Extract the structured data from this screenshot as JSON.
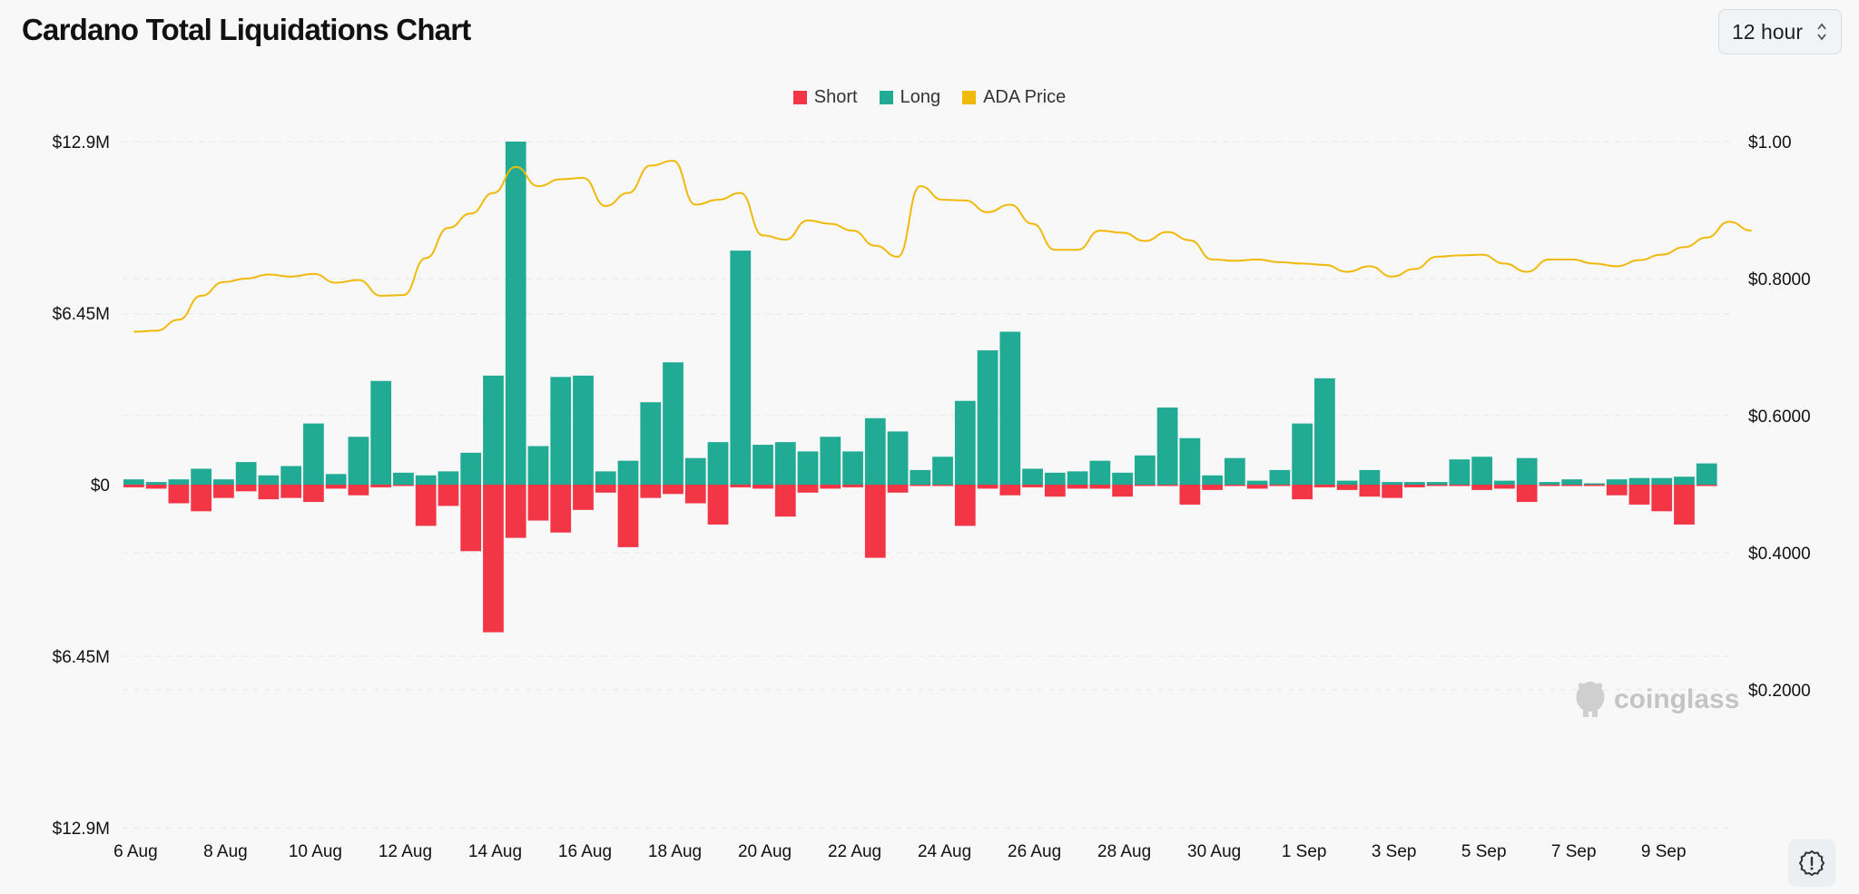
{
  "page": {
    "title": "Cardano Total Liquidations Chart",
    "interval": "12 hour",
    "watermark": "coinglass",
    "icons": {
      "interval": "chevron-up-down-icon",
      "settings": "gear-alert-icon",
      "watermark": "coinglass-logo-icon"
    }
  },
  "chart_data": {
    "type": "bar",
    "title": "Cardano Total Liquidations Chart",
    "legend_position": "top-center",
    "grid": true,
    "colors": {
      "short": "#f23645",
      "long": "#22ab94",
      "price": "#f0b90b"
    },
    "x_tick_labels": [
      "6 Aug",
      "8 Aug",
      "10 Aug",
      "12 Aug",
      "14 Aug",
      "16 Aug",
      "18 Aug",
      "20 Aug",
      "22 Aug",
      "24 Aug",
      "26 Aug",
      "28 Aug",
      "30 Aug",
      "1 Sep",
      "3 Sep",
      "5 Sep",
      "7 Sep",
      "9 Sep"
    ],
    "y_left_tick_labels": [
      "$12.9M",
      "$6.45M",
      "$0",
      "$6.45M",
      "$12.9M"
    ],
    "y_left_ticks": [
      12.9,
      6.45,
      0,
      -6.45,
      -12.9
    ],
    "y_left_range": [
      -12.9,
      12.9
    ],
    "y_right_tick_labels": [
      "$1.00",
      "$0.8000",
      "$0.6000",
      "$0.4000",
      "$0.2000"
    ],
    "y_right_ticks": [
      1.0,
      0.8,
      0.6,
      0.4,
      0.2
    ],
    "y_right_range": [
      0.0,
      1.0
    ],
    "interval_hours": 12,
    "start_label": "6 Aug",
    "series": [
      {
        "name": "Long",
        "unit": "$M",
        "values": [
          0.2,
          0.1,
          0.2,
          0.6,
          0.2,
          0.85,
          0.35,
          0.7,
          2.3,
          0.4,
          1.8,
          3.9,
          0.45,
          0.35,
          0.5,
          1.2,
          4.1,
          12.9,
          1.45,
          4.05,
          4.1,
          0.5,
          0.9,
          3.1,
          4.6,
          1.0,
          1.6,
          8.8,
          1.5,
          1.6,
          1.25,
          1.8,
          1.25,
          2.5,
          2.0,
          0.55,
          1.05,
          3.15,
          5.05,
          5.75,
          0.6,
          0.45,
          0.5,
          0.9,
          0.45,
          1.1,
          2.9,
          1.75,
          0.35,
          1.0,
          0.15,
          0.55,
          2.3,
          4.0,
          0.15,
          0.55,
          0.1,
          0.1,
          0.1,
          0.95,
          1.05,
          0.15,
          1.0,
          0.1,
          0.2,
          0.05,
          0.2,
          0.25,
          0.25,
          0.3,
          0.8
        ]
      },
      {
        "name": "Short",
        "unit": "$M",
        "values": [
          0.1,
          0.15,
          0.7,
          1.0,
          0.5,
          0.25,
          0.55,
          0.5,
          0.65,
          0.15,
          0.4,
          0.1,
          0.05,
          1.55,
          0.8,
          2.5,
          5.55,
          2.0,
          1.35,
          1.8,
          0.95,
          0.3,
          2.35,
          0.5,
          0.35,
          0.7,
          1.5,
          0.1,
          0.15,
          1.2,
          0.3,
          0.15,
          0.1,
          2.75,
          0.3,
          0.05,
          0.05,
          1.55,
          0.15,
          0.4,
          0.1,
          0.45,
          0.15,
          0.15,
          0.45,
          0.05,
          0.05,
          0.75,
          0.2,
          0.05,
          0.15,
          0.05,
          0.55,
          0.1,
          0.2,
          0.45,
          0.5,
          0.1,
          0.05,
          0.05,
          0.2,
          0.15,
          0.65,
          0.05,
          0.05,
          0.05,
          0.4,
          0.75,
          1.0,
          1.5,
          0.05
        ]
      },
      {
        "name": "ADA Price",
        "unit": "$",
        "axis": "right",
        "points": [
          [
            0,
            0.7225
          ],
          [
            1,
            0.724
          ],
          [
            2,
            0.74
          ],
          [
            3,
            0.775
          ],
          [
            4,
            0.795
          ],
          [
            5,
            0.8
          ],
          [
            6,
            0.806
          ],
          [
            7,
            0.803
          ],
          [
            8,
            0.807
          ],
          [
            9,
            0.794
          ],
          [
            10,
            0.798
          ],
          [
            11,
            0.775
          ],
          [
            12,
            0.776
          ],
          [
            13,
            0.83
          ],
          [
            14,
            0.874
          ],
          [
            15,
            0.895
          ],
          [
            16,
            0.925
          ],
          [
            17,
            0.963
          ],
          [
            18,
            0.935
          ],
          [
            19,
            0.945
          ],
          [
            20,
            0.947
          ],
          [
            21,
            0.906
          ],
          [
            22,
            0.925
          ],
          [
            23,
            0.965
          ],
          [
            24,
            0.972
          ],
          [
            25,
            0.908
          ],
          [
            26,
            0.915
          ],
          [
            27,
            0.925
          ],
          [
            28,
            0.863
          ],
          [
            29,
            0.857
          ],
          [
            30,
            0.885
          ],
          [
            31,
            0.88
          ],
          [
            32,
            0.87
          ],
          [
            33,
            0.848
          ],
          [
            34,
            0.832
          ],
          [
            35,
            0.935
          ],
          [
            36,
            0.915
          ],
          [
            37,
            0.914
          ],
          [
            38,
            0.897
          ],
          [
            39,
            0.908
          ],
          [
            40,
            0.88
          ],
          [
            41,
            0.842
          ],
          [
            42,
            0.842
          ],
          [
            43,
            0.87
          ],
          [
            44,
            0.867
          ],
          [
            45,
            0.855
          ],
          [
            46,
            0.868
          ],
          [
            47,
            0.856
          ],
          [
            48,
            0.828
          ],
          [
            49,
            0.826
          ],
          [
            50,
            0.828
          ],
          [
            51,
            0.824
          ],
          [
            52,
            0.822
          ],
          [
            53,
            0.82
          ],
          [
            54,
            0.81
          ],
          [
            55,
            0.818
          ],
          [
            56,
            0.803
          ],
          [
            57,
            0.814
          ],
          [
            58,
            0.832
          ],
          [
            59,
            0.834
          ],
          [
            60,
            0.835
          ],
          [
            61,
            0.822
          ],
          [
            62,
            0.81
          ],
          [
            63,
            0.828
          ],
          [
            64,
            0.828
          ],
          [
            65,
            0.822
          ],
          [
            66,
            0.818
          ],
          [
            67,
            0.827
          ],
          [
            68,
            0.835
          ],
          [
            69,
            0.846
          ],
          [
            70,
            0.86
          ],
          [
            71,
            0.883
          ],
          [
            72,
            0.87
          ]
        ]
      }
    ]
  }
}
